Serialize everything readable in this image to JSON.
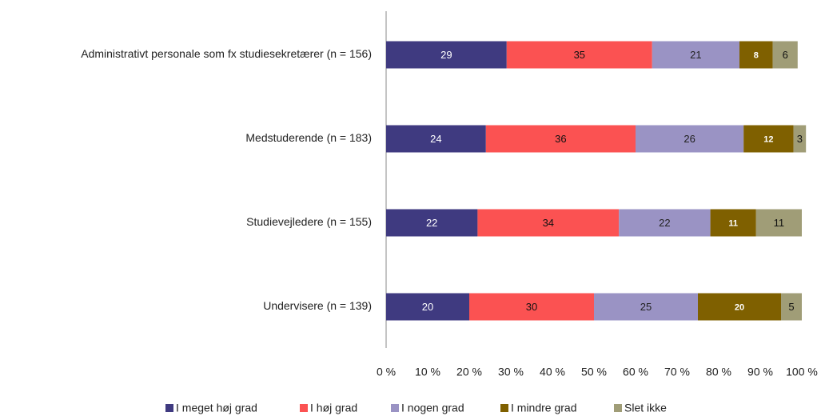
{
  "chart_data": {
    "type": "stacked_bar_horizontal",
    "categories": [
      "Administrativt personale som fx studiesekretærer (n = 156)",
      "Medstuderende (n = 183)",
      "Studievejledere (n = 155)",
      "Undervisere (n = 139)"
    ],
    "series": [
      {
        "name": "I meget høj grad",
        "color": "#3f3a80",
        "values": [
          29,
          24,
          22,
          20
        ]
      },
      {
        "name": "I høj grad",
        "color": "#fb5252",
        "values": [
          35,
          36,
          34,
          30
        ]
      },
      {
        "name": "I nogen grad",
        "color": "#9a93c4",
        "values": [
          21,
          26,
          22,
          25
        ]
      },
      {
        "name": "I mindre grad",
        "color": "#7f6000",
        "values": [
          8,
          12,
          11,
          20
        ]
      },
      {
        "name": "Slet ikke",
        "color": "#a09d77",
        "values": [
          6,
          3,
          11,
          5
        ]
      }
    ],
    "xlim": [
      0,
      100
    ],
    "xticks": [
      {
        "value": 0,
        "label": "0 %"
      },
      {
        "value": 10,
        "label": "10 %"
      },
      {
        "value": 20,
        "label": "20 %"
      },
      {
        "value": 30,
        "label": "30 %"
      },
      {
        "value": 40,
        "label": "40 %"
      },
      {
        "value": 50,
        "label": "50 %"
      },
      {
        "value": 60,
        "label": "60 %"
      },
      {
        "value": 70,
        "label": "70 %"
      },
      {
        "value": 80,
        "label": "80 %"
      },
      {
        "value": 90,
        "label": "90 %"
      },
      {
        "value": 100,
        "label": "100 %"
      }
    ],
    "legend": "bottom"
  }
}
